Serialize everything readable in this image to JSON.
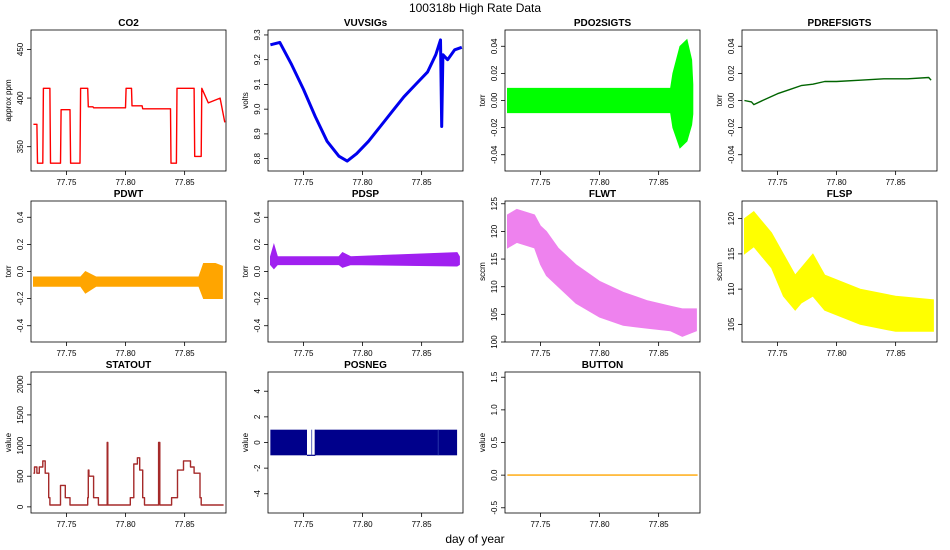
{
  "figure": {
    "title": "100318b   High Rate Data",
    "xlabel": "day of year"
  },
  "chart_data": [
    {
      "type": "line",
      "title": "CO2",
      "ylabel": "approx ppm",
      "color": "#ff0000",
      "xlim": [
        77.72,
        77.885
      ],
      "ylim": [
        325,
        470
      ],
      "xticks": [
        77.75,
        77.8,
        77.85
      ],
      "xtick_labels": [
        "77.75",
        "77.80",
        "77.85"
      ],
      "yticks": [
        350,
        400,
        450
      ],
      "ytick_labels": [
        "350",
        "400",
        "450"
      ],
      "series": [
        {
          "x": [
            77.722,
            77.725,
            77.7255,
            77.73,
            77.7305,
            77.736,
            77.7365,
            77.745,
            77.7455,
            77.753,
            77.7535,
            77.7615,
            77.762,
            77.768,
            77.7685,
            77.7725,
            77.773,
            77.8,
            77.8005,
            77.805,
            77.8055,
            77.814,
            77.8145,
            77.838,
            77.8385,
            77.843,
            77.8435,
            77.858,
            77.8585,
            77.864,
            77.8645,
            77.87,
            77.88,
            77.884
          ],
          "y": [
            373,
            373,
            333,
            333,
            410,
            410,
            333,
            333,
            388,
            388,
            333,
            333,
            410,
            410,
            391,
            391,
            390,
            390,
            410,
            410,
            392,
            392,
            389,
            389,
            333,
            333,
            410,
            410,
            340,
            340,
            410,
            395,
            400,
            375
          ]
        }
      ]
    },
    {
      "type": "line",
      "title": "VUVSIGs",
      "ylabel": "volts",
      "color": "#0000ee",
      "xlim": [
        77.72,
        77.885
      ],
      "ylim": [
        8.75,
        9.32
      ],
      "xticks": [
        77.75,
        77.8,
        77.85
      ],
      "xtick_labels": [
        "77.75",
        "77.80",
        "77.85"
      ],
      "yticks": [
        8.8,
        8.9,
        9.0,
        9.1,
        9.2,
        9.3
      ],
      "ytick_labels": [
        "8.8",
        "8.9",
        "9.0",
        "9.1",
        "9.2",
        "9.3"
      ],
      "series": [
        {
          "x": [
            77.722,
            77.73,
            77.74,
            77.75,
            77.76,
            77.77,
            77.78,
            77.787,
            77.795,
            77.805,
            77.815,
            77.825,
            77.835,
            77.845,
            77.855,
            77.862,
            77.866,
            77.867,
            77.868,
            77.872,
            77.878,
            77.884
          ],
          "y": [
            9.26,
            9.27,
            9.18,
            9.08,
            8.97,
            8.87,
            8.81,
            8.79,
            8.82,
            8.87,
            8.93,
            8.99,
            9.05,
            9.1,
            9.15,
            9.22,
            9.28,
            8.93,
            9.22,
            9.2,
            9.24,
            9.25
          ]
        }
      ]
    },
    {
      "type": "line",
      "title": "PDO2SIGTS",
      "ylabel": "torr",
      "color": "#00ff00",
      "xlim": [
        77.72,
        77.885
      ],
      "ylim": [
        -0.052,
        0.052
      ],
      "xticks": [
        77.75,
        77.8,
        77.85
      ],
      "xtick_labels": [
        "77.75",
        "77.80",
        "77.85"
      ],
      "yticks": [
        -0.04,
        -0.02,
        0.0,
        0.02,
        0.04
      ],
      "ytick_labels": [
        "-0.04",
        "-0.02",
        "0.00",
        "0.02",
        "0.04"
      ],
      "band_x": [
        77.722,
        77.86,
        77.862,
        77.868,
        77.874,
        77.878,
        77.879
      ],
      "band_lo": [
        -0.009,
        -0.009,
        -0.02,
        -0.035,
        -0.03,
        -0.018,
        -0.01
      ],
      "band_hi": [
        0.009,
        0.009,
        0.02,
        0.04,
        0.045,
        0.03,
        0.012
      ]
    },
    {
      "type": "line",
      "title": "PDREFSIGTS",
      "ylabel": "torr",
      "color": "#006400",
      "xlim": [
        77.72,
        77.885
      ],
      "ylim": [
        -0.052,
        0.052
      ],
      "xticks": [
        77.75,
        77.8,
        77.85
      ],
      "xtick_labels": [
        "77.75",
        "77.80",
        "77.85"
      ],
      "yticks": [
        -0.04,
        -0.02,
        0.0,
        0.02,
        0.04
      ],
      "ytick_labels": [
        "-0.04",
        "-0.02",
        "0.00",
        "0.02",
        "0.04"
      ],
      "series": [
        {
          "x": [
            77.722,
            77.728,
            77.73,
            77.74,
            77.75,
            77.76,
            77.77,
            77.78,
            77.79,
            77.8,
            77.82,
            77.84,
            77.86,
            77.878,
            77.88
          ],
          "y": [
            0.0,
            -0.001,
            -0.003,
            0.001,
            0.005,
            0.008,
            0.011,
            0.012,
            0.014,
            0.014,
            0.015,
            0.016,
            0.016,
            0.017,
            0.015
          ]
        }
      ]
    },
    {
      "type": "line",
      "title": "PDWT",
      "ylabel": "torr",
      "color": "#ffa500",
      "xlim": [
        77.72,
        77.885
      ],
      "ylim": [
        -0.52,
        0.52
      ],
      "xticks": [
        77.75,
        77.8,
        77.85
      ],
      "xtick_labels": [
        "77.75",
        "77.80",
        "77.85"
      ],
      "yticks": [
        -0.4,
        -0.2,
        0.0,
        0.2,
        0.4
      ],
      "ytick_labels": [
        "-0.4",
        "-0.2",
        "0.0",
        "0.2",
        "0.4"
      ],
      "band_x": [
        77.722,
        77.762,
        77.766,
        77.775,
        77.79,
        77.862,
        77.866,
        77.876,
        77.882
      ],
      "band_lo": [
        -0.11,
        -0.11,
        -0.16,
        -0.11,
        -0.11,
        -0.11,
        -0.2,
        -0.2,
        -0.2
      ],
      "band_hi": [
        -0.04,
        -0.04,
        0.0,
        -0.04,
        -0.04,
        -0.04,
        0.06,
        0.06,
        0.04
      ]
    },
    {
      "type": "line",
      "title": "PDSP",
      "ylabel": "torr",
      "color": "#a020f0",
      "xlim": [
        77.72,
        77.885
      ],
      "ylim": [
        -0.52,
        0.52
      ],
      "xticks": [
        77.75,
        77.8,
        77.85
      ],
      "xtick_labels": [
        "77.75",
        "77.80",
        "77.85"
      ],
      "yticks": [
        -0.4,
        -0.2,
        0.0,
        0.2,
        0.4
      ],
      "ytick_labels": [
        "-0.4",
        "-0.2",
        "0.0",
        "0.2",
        "0.4"
      ],
      "band_x": [
        77.722,
        77.725,
        77.728,
        77.78,
        77.783,
        77.79,
        77.88,
        77.882
      ],
      "band_lo": [
        0.05,
        0.02,
        0.05,
        0.05,
        0.03,
        0.05,
        0.04,
        0.05
      ],
      "band_hi": [
        0.11,
        0.2,
        0.11,
        0.11,
        0.14,
        0.11,
        0.14,
        0.11
      ]
    },
    {
      "type": "line",
      "title": "FLWT",
      "ylabel": "sccm",
      "color": "#ee82ee",
      "xlim": [
        77.72,
        77.885
      ],
      "ylim": [
        100,
        125.5
      ],
      "xticks": [
        77.75,
        77.8,
        77.85
      ],
      "xtick_labels": [
        "77.75",
        "77.80",
        "77.85"
      ],
      "yticks": [
        100,
        105,
        110,
        115,
        120,
        125
      ],
      "ytick_labels": [
        "100",
        "105",
        "110",
        "115",
        "120",
        "125"
      ],
      "band_x": [
        77.722,
        77.73,
        77.745,
        77.75,
        77.755,
        77.765,
        77.78,
        77.8,
        77.82,
        77.84,
        77.86,
        77.87,
        77.882
      ],
      "band_lo": [
        117,
        118,
        117,
        114,
        112,
        110,
        107,
        104.5,
        103,
        102.5,
        102,
        101,
        102
      ],
      "band_hi": [
        123,
        124,
        123,
        121,
        120,
        117,
        114,
        111,
        109,
        107.5,
        106.5,
        106,
        106
      ]
    },
    {
      "type": "line",
      "title": "FLSP",
      "ylabel": "sccm",
      "color": "#ffff00",
      "xlim": [
        77.72,
        77.885
      ],
      "ylim": [
        102.5,
        122.5
      ],
      "xticks": [
        77.75,
        77.8,
        77.85
      ],
      "xtick_labels": [
        "77.75",
        "77.80",
        "77.85"
      ],
      "yticks": [
        105,
        110,
        115,
        120
      ],
      "ytick_labels": [
        "105",
        "110",
        "115",
        "120"
      ],
      "band_x": [
        77.722,
        77.73,
        77.745,
        77.755,
        77.765,
        77.77,
        77.78,
        77.79,
        77.82,
        77.85,
        77.882
      ],
      "band_lo": [
        115,
        116,
        113,
        109,
        107,
        108,
        109,
        107,
        105,
        104,
        104
      ],
      "band_hi": [
        120,
        121,
        118,
        115,
        112,
        113,
        115,
        112,
        110,
        109,
        108.5
      ]
    },
    {
      "type": "line",
      "title": "STATOUT",
      "ylabel": "value",
      "color": "#a52a2a",
      "xlim": [
        77.72,
        77.885
      ],
      "ylim": [
        -100,
        2200
      ],
      "xticks": [
        77.75,
        77.8,
        77.85
      ],
      "xtick_labels": [
        "77.75",
        "77.80",
        "77.85"
      ],
      "yticks": [
        0,
        500,
        1000,
        1500,
        2000
      ],
      "ytick_labels": [
        "0",
        "500",
        "1000",
        "1500",
        "2000"
      ],
      "series": [
        {
          "x": [
            77.722,
            77.723,
            77.723,
            77.725,
            77.725,
            77.727,
            77.727,
            77.73,
            77.73,
            77.732,
            77.732,
            77.735,
            77.735,
            77.736,
            77.736,
            77.745,
            77.745,
            77.749,
            77.749,
            77.753,
            77.753,
            77.768,
            77.768,
            77.7685,
            77.7685,
            77.769,
            77.769,
            77.773,
            77.773,
            77.777,
            77.777,
            77.7845,
            77.7845,
            77.785,
            77.785,
            77.786,
            77.786,
            77.804,
            77.804,
            77.807,
            77.807,
            77.81,
            77.81,
            77.812,
            77.812,
            77.8145,
            77.8145,
            77.816,
            77.816,
            77.828,
            77.828,
            77.829,
            77.829,
            77.83,
            77.83,
            77.839,
            77.839,
            77.844,
            77.844,
            77.849,
            77.849,
            77.855,
            77.855,
            77.858,
            77.858,
            77.863,
            77.863,
            77.864,
            77.864,
            77.883
          ],
          "y": [
            550,
            550,
            650,
            650,
            550,
            550,
            650,
            650,
            750,
            750,
            550,
            550,
            150,
            150,
            30,
            30,
            350,
            350,
            150,
            150,
            30,
            30,
            150,
            150,
            600,
            600,
            500,
            500,
            150,
            150,
            30,
            30,
            1050,
            1050,
            30,
            30,
            30,
            30,
            150,
            150,
            700,
            700,
            800,
            800,
            600,
            600,
            150,
            150,
            30,
            30,
            1050,
            1050,
            30,
            30,
            30,
            30,
            150,
            150,
            600,
            600,
            750,
            750,
            650,
            650,
            550,
            550,
            150,
            150,
            30,
            30
          ]
        }
      ]
    },
    {
      "type": "area",
      "title": "POSNEG",
      "ylabel": "value",
      "color": "#00008b",
      "xlim": [
        77.72,
        77.885
      ],
      "ylim": [
        -5.5,
        5.5
      ],
      "xticks": [
        77.75,
        77.8,
        77.85
      ],
      "xtick_labels": [
        "77.75",
        "77.80",
        "77.85"
      ],
      "yticks": [
        -4,
        -2,
        0,
        2,
        4
      ],
      "ytick_labels": [
        "-4",
        "-2",
        "0",
        "2",
        "4"
      ],
      "blocks": [
        [
          77.722,
          77.753,
          -1,
          1
        ],
        [
          77.76,
          77.88,
          -1,
          1
        ]
      ],
      "gap_line": [
        77.753,
        77.76,
        -1
      ],
      "notches": [
        77.757,
        77.864
      ]
    },
    {
      "type": "line",
      "title": "BUTTON",
      "ylabel": "value",
      "color": "#ffa500",
      "xlim": [
        77.72,
        77.885
      ],
      "ylim": [
        -0.58,
        1.58
      ],
      "xticks": [
        77.75,
        77.8,
        77.85
      ],
      "xtick_labels": [
        "77.75",
        "77.80",
        "77.85"
      ],
      "yticks": [
        -0.5,
        0.0,
        0.5,
        1.0,
        1.5
      ],
      "ytick_labels": [
        "-0.5",
        "0.0",
        "0.5",
        "1.0",
        "1.5"
      ],
      "series": [
        {
          "x": [
            77.722,
            77.883
          ],
          "y": [
            0,
            0
          ]
        }
      ]
    }
  ]
}
